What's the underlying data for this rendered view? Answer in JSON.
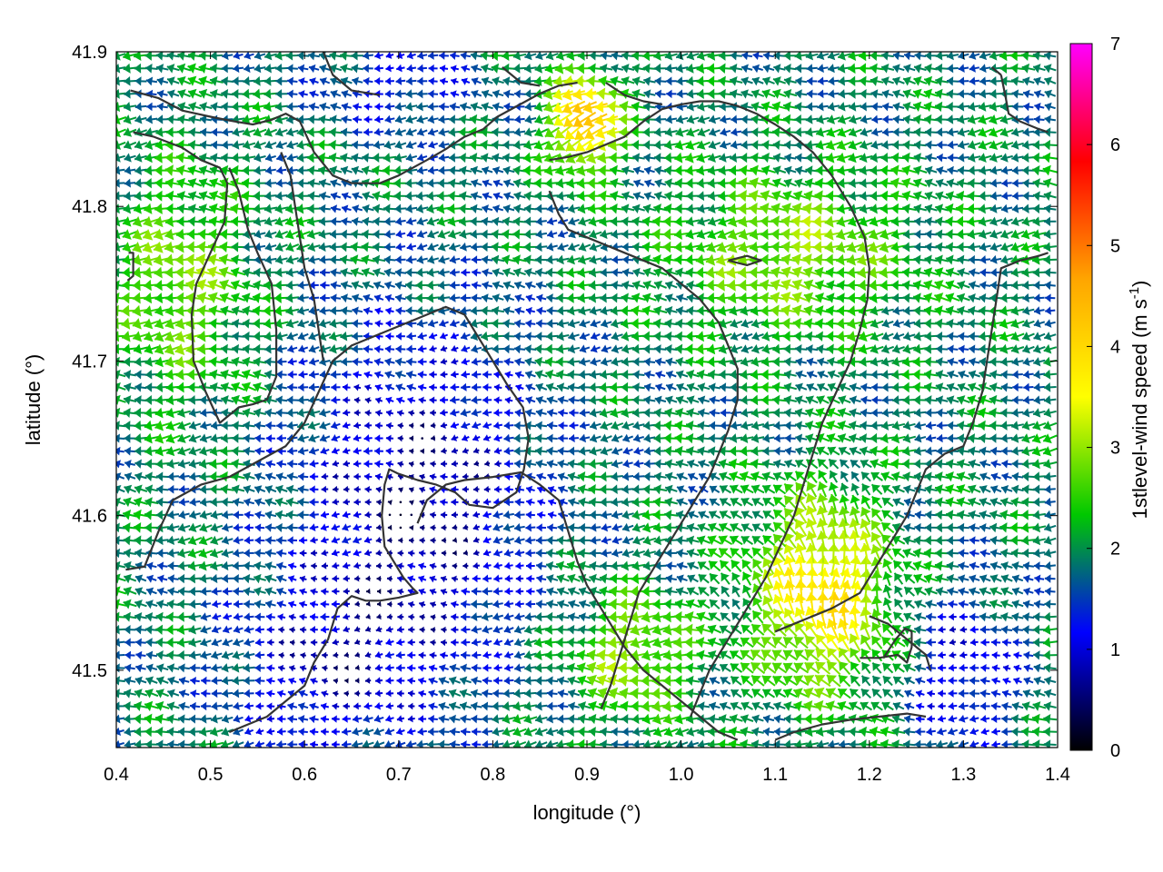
{
  "chart_data": {
    "type": "vector-field",
    "xlabel": "longitude (°)",
    "ylabel": "latitude (°)",
    "colorbar": {
      "label_main": "1stlevel-wind speed (m s",
      "label_sup": "-1",
      "label_close": ")",
      "range": [
        0,
        7
      ],
      "ticks": [
        "0",
        "1",
        "2",
        "3",
        "4",
        "5",
        "6",
        "7"
      ],
      "colors": [
        "#000000",
        "#0000ff",
        "#00c800",
        "#ffff00",
        "#ffa500",
        "#ff0000",
        "#ff00ff"
      ]
    },
    "xlim": [
      0.4,
      1.4
    ],
    "ylim": [
      41.45,
      41.9
    ],
    "xticks": [
      "0.4",
      "0.5",
      "0.6",
      "0.7",
      "0.8",
      "0.9",
      "1.0",
      "1.1",
      "1.2",
      "1.3",
      "1.4"
    ],
    "yticks": [
      "41.5",
      "41.6",
      "41.7",
      "41.8",
      "41.9"
    ],
    "grid": false,
    "dominant_direction": "from east (arrows point west)",
    "coastlines": [
      [
        [
          0.415,
          41.875
        ],
        [
          0.445,
          41.87
        ],
        [
          0.47,
          41.862
        ],
        [
          0.5,
          41.858
        ],
        [
          0.525,
          41.855
        ],
        [
          0.545,
          41.853
        ],
        [
          0.565,
          41.856
        ],
        [
          0.58,
          41.86
        ],
        [
          0.595,
          41.855
        ],
        [
          0.61,
          41.835
        ],
        [
          0.63,
          41.82
        ],
        [
          0.65,
          41.815
        ],
        [
          0.68,
          41.815
        ],
        [
          0.7,
          41.82
        ],
        [
          0.73,
          41.83
        ],
        [
          0.75,
          41.837
        ],
        [
          0.77,
          41.845
        ],
        [
          0.79,
          41.85
        ],
        [
          0.805,
          41.858
        ],
        [
          0.82,
          41.863
        ],
        [
          0.835,
          41.868
        ],
        [
          0.85,
          41.873
        ],
        [
          0.87,
          41.878
        ],
        [
          0.89,
          41.88
        ]
      ],
      [
        [
          0.418,
          41.848
        ],
        [
          0.44,
          41.845
        ],
        [
          0.47,
          41.838
        ],
        [
          0.49,
          41.83
        ],
        [
          0.51,
          41.825
        ],
        [
          0.518,
          41.815
        ],
        [
          0.515,
          41.79
        ],
        [
          0.5,
          41.77
        ],
        [
          0.485,
          41.75
        ],
        [
          0.48,
          41.73
        ],
        [
          0.482,
          41.7
        ],
        [
          0.495,
          41.68
        ],
        [
          0.51,
          41.66
        ],
        [
          0.53,
          41.67
        ],
        [
          0.545,
          41.672
        ],
        [
          0.56,
          41.675
        ],
        [
          0.57,
          41.69
        ],
        [
          0.57,
          41.72
        ],
        [
          0.565,
          41.75
        ],
        [
          0.55,
          41.77
        ],
        [
          0.54,
          41.785
        ],
        [
          0.53,
          41.81
        ],
        [
          0.52,
          41.825
        ]
      ],
      [
        [
          0.413,
          41.77
        ],
        [
          0.418,
          41.77
        ],
        [
          0.418,
          41.755
        ],
        [
          0.412,
          41.752
        ]
      ],
      [
        [
          0.41,
          41.565
        ],
        [
          0.43,
          41.567
        ],
        [
          0.445,
          41.59
        ],
        [
          0.46,
          41.61
        ],
        [
          0.49,
          41.62
        ],
        [
          0.52,
          41.625
        ],
        [
          0.55,
          41.635
        ],
        [
          0.58,
          41.645
        ],
        [
          0.6,
          41.66
        ],
        [
          0.615,
          41.68
        ],
        [
          0.63,
          41.7
        ],
        [
          0.65,
          41.71
        ],
        [
          0.67,
          41.715
        ],
        [
          0.69,
          41.72
        ],
        [
          0.71,
          41.725
        ],
        [
          0.73,
          41.73
        ],
        [
          0.75,
          41.735
        ],
        [
          0.77,
          41.73
        ],
        [
          0.785,
          41.715
        ],
        [
          0.8,
          41.7
        ],
        [
          0.815,
          41.685
        ],
        [
          0.832,
          41.67
        ],
        [
          0.838,
          41.65
        ],
        [
          0.833,
          41.63
        ],
        [
          0.825,
          41.615
        ],
        [
          0.8,
          41.605
        ],
        [
          0.775,
          41.607
        ],
        [
          0.76,
          41.615
        ],
        [
          0.74,
          41.62
        ],
        [
          0.72,
          41.623
        ],
        [
          0.7,
          41.627
        ],
        [
          0.69,
          41.63
        ],
        [
          0.685,
          41.62
        ],
        [
          0.682,
          41.6
        ],
        [
          0.685,
          41.58
        ],
        [
          0.695,
          41.57
        ],
        [
          0.705,
          41.56
        ],
        [
          0.715,
          41.553
        ],
        [
          0.72,
          41.55
        ],
        [
          0.7,
          41.547
        ],
        [
          0.68,
          41.545
        ],
        [
          0.665,
          41.545
        ],
        [
          0.65,
          41.548
        ],
        [
          0.635,
          41.54
        ],
        [
          0.625,
          41.52
        ],
        [
          0.61,
          41.505
        ],
        [
          0.6,
          41.49
        ],
        [
          0.58,
          41.48
        ],
        [
          0.56,
          41.47
        ],
        [
          0.54,
          41.465
        ],
        [
          0.52,
          41.46
        ]
      ],
      [
        [
          0.575,
          41.835
        ],
        [
          0.585,
          41.82
        ],
        [
          0.59,
          41.8
        ],
        [
          0.595,
          41.78
        ],
        [
          0.6,
          41.76
        ],
        [
          0.61,
          41.74
        ],
        [
          0.615,
          41.72
        ],
        [
          0.62,
          41.7
        ]
      ],
      [
        [
          0.72,
          41.595
        ],
        [
          0.73,
          41.61
        ],
        [
          0.75,
          41.62
        ],
        [
          0.77,
          41.623
        ],
        [
          0.8,
          41.625
        ],
        [
          0.83,
          41.628
        ],
        [
          0.85,
          41.62
        ],
        [
          0.87,
          41.61
        ],
        [
          0.88,
          41.59
        ],
        [
          0.89,
          41.57
        ],
        [
          0.9,
          41.555
        ],
        [
          0.91,
          41.545
        ],
        [
          0.925,
          41.53
        ],
        [
          0.94,
          41.515
        ],
        [
          0.96,
          41.5
        ],
        [
          0.98,
          41.49
        ],
        [
          1.0,
          41.48
        ],
        [
          1.02,
          41.47
        ],
        [
          1.04,
          41.46
        ],
        [
          1.06,
          41.455
        ]
      ],
      [
        [
          0.86,
          41.83
        ],
        [
          0.88,
          41.832
        ],
        [
          0.9,
          41.835
        ],
        [
          0.92,
          41.84
        ],
        [
          0.94,
          41.845
        ],
        [
          0.96,
          41.855
        ],
        [
          0.98,
          41.863
        ],
        [
          1.0,
          41.866
        ],
        [
          1.02,
          41.868
        ],
        [
          1.04,
          41.868
        ],
        [
          1.06,
          41.865
        ],
        [
          1.08,
          41.86
        ],
        [
          1.1,
          41.853
        ],
        [
          1.12,
          41.845
        ],
        [
          1.14,
          41.835
        ],
        [
          1.16,
          41.82
        ],
        [
          1.18,
          41.8
        ],
        [
          1.195,
          41.78
        ],
        [
          1.2,
          41.76
        ],
        [
          1.198,
          41.74
        ],
        [
          1.19,
          41.72
        ],
        [
          1.18,
          41.7
        ],
        [
          1.165,
          41.68
        ],
        [
          1.15,
          41.66
        ],
        [
          1.14,
          41.64
        ],
        [
          1.13,
          41.62
        ],
        [
          1.12,
          41.6
        ],
        [
          1.105,
          41.58
        ],
        [
          1.09,
          41.56
        ],
        [
          1.075,
          41.545
        ],
        [
          1.06,
          41.53
        ],
        [
          1.045,
          41.515
        ],
        [
          1.03,
          41.5
        ],
        [
          1.02,
          41.485
        ],
        [
          1.01,
          41.47
        ]
      ],
      [
        [
          0.86,
          41.81
        ],
        [
          0.87,
          41.795
        ],
        [
          0.88,
          41.785
        ],
        [
          0.9,
          41.78
        ],
        [
          0.92,
          41.775
        ],
        [
          0.94,
          41.77
        ],
        [
          0.96,
          41.765
        ],
        [
          0.98,
          41.76
        ],
        [
          1.0,
          41.75
        ],
        [
          1.02,
          41.74
        ],
        [
          1.04,
          41.725
        ],
        [
          1.05,
          41.71
        ],
        [
          1.06,
          41.695
        ],
        [
          1.06,
          41.675
        ],
        [
          1.05,
          41.655
        ],
        [
          1.04,
          41.64
        ],
        [
          1.03,
          41.625
        ],
        [
          1.015,
          41.61
        ],
        [
          1.0,
          41.595
        ],
        [
          0.985,
          41.58
        ],
        [
          0.97,
          41.565
        ],
        [
          0.955,
          41.55
        ],
        [
          0.945,
          41.53
        ],
        [
          0.935,
          41.51
        ],
        [
          0.925,
          41.49
        ],
        [
          0.915,
          41.475
        ]
      ],
      [
        [
          1.05,
          41.765
        ],
        [
          1.07,
          41.762
        ],
        [
          1.085,
          41.765
        ],
        [
          1.07,
          41.768
        ],
        [
          1.05,
          41.765
        ]
      ],
      [
        [
          1.1,
          41.525
        ],
        [
          1.12,
          41.53
        ],
        [
          1.14,
          41.535
        ],
        [
          1.16,
          41.54
        ],
        [
          1.175,
          41.545
        ],
        [
          1.19,
          41.55
        ],
        [
          1.2,
          41.56
        ],
        [
          1.21,
          41.57
        ],
        [
          1.22,
          41.58
        ],
        [
          1.23,
          41.59
        ],
        [
          1.24,
          41.6
        ],
        [
          1.25,
          41.615
        ],
        [
          1.26,
          41.63
        ],
        [
          1.28,
          41.64
        ],
        [
          1.3,
          41.645
        ],
        [
          1.31,
          41.66
        ],
        [
          1.32,
          41.68
        ],
        [
          1.325,
          41.7
        ],
        [
          1.33,
          41.72
        ],
        [
          1.335,
          41.74
        ],
        [
          1.34,
          41.76
        ],
        [
          1.36,
          41.765
        ],
        [
          1.38,
          41.768
        ],
        [
          1.39,
          41.77
        ]
      ],
      [
        [
          1.2,
          41.535
        ],
        [
          1.22,
          41.53
        ],
        [
          1.24,
          41.52
        ],
        [
          1.25,
          41.515
        ],
        [
          1.26,
          41.51
        ],
        [
          1.265,
          41.5
        ]
      ],
      [
        [
          1.19,
          41.508
        ],
        [
          1.21,
          41.508
        ],
        [
          1.23,
          41.51
        ],
        [
          1.24,
          41.505
        ],
        [
          1.245,
          41.515
        ],
        [
          1.245,
          41.525
        ],
        [
          1.238,
          41.527
        ],
        [
          1.228,
          41.52
        ],
        [
          1.215,
          41.508
        ]
      ],
      [
        [
          1.1,
          41.455
        ],
        [
          1.12,
          41.46
        ],
        [
          1.15,
          41.465
        ],
        [
          1.18,
          41.468
        ],
        [
          1.21,
          41.47
        ],
        [
          1.24,
          41.472
        ],
        [
          1.26,
          41.47
        ]
      ],
      [
        [
          1.34,
          41.885
        ],
        [
          1.345,
          41.87
        ],
        [
          1.348,
          41.86
        ],
        [
          1.36,
          41.855
        ],
        [
          1.38,
          41.85
        ],
        [
          1.39,
          41.848
        ]
      ],
      [
        [
          1.33,
          41.89
        ],
        [
          1.34,
          41.885
        ]
      ],
      [
        [
          0.92,
          41.88
        ],
        [
          0.94,
          41.872
        ],
        [
          0.96,
          41.868
        ],
        [
          0.98,
          41.866
        ]
      ],
      [
        [
          0.62,
          41.9
        ],
        [
          0.63,
          41.885
        ],
        [
          0.65,
          41.875
        ],
        [
          0.68,
          41.872
        ]
      ],
      [
        [
          0.81,
          41.89
        ],
        [
          0.83,
          41.88
        ],
        [
          0.85,
          41.878
        ]
      ]
    ]
  }
}
